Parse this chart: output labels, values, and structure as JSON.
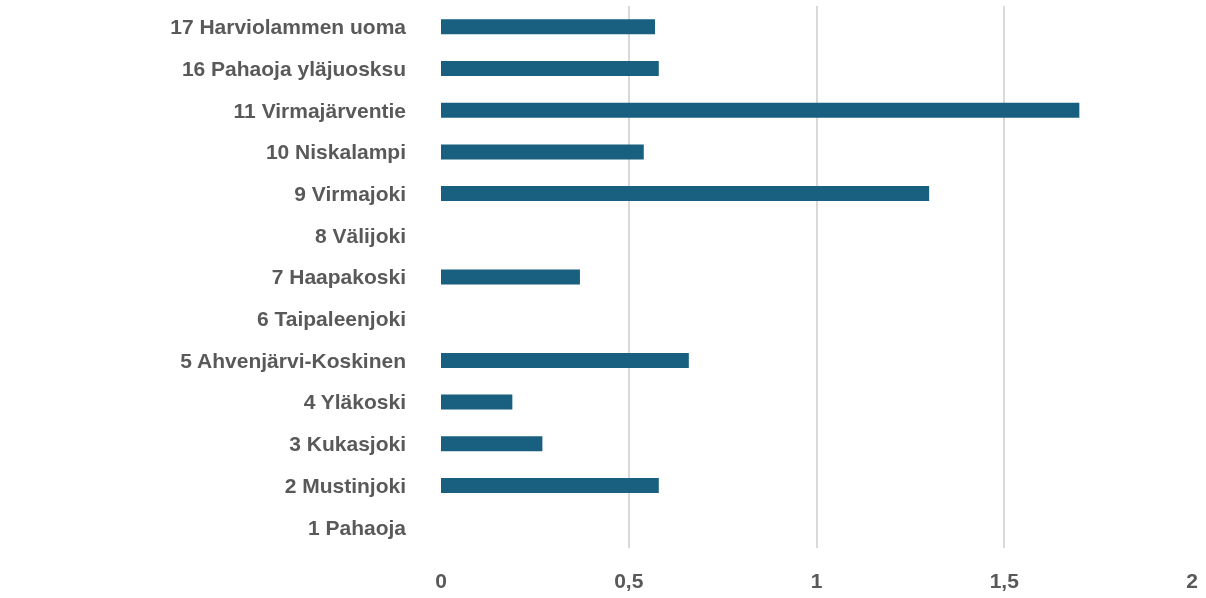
{
  "chart_data": {
    "type": "bar",
    "orientation": "horizontal",
    "categories": [
      "17 Harviolammen uoma",
      "16 Pahaoja yläjuosksu",
      "11 Virmajärventie",
      "10 Niskalampi",
      "9 Virmajoki",
      "8 Välijoki",
      "7 Haapakoski",
      "6 Taipaleenjoki",
      "5 Ahvenjärvi-Koskinen",
      "4 Yläkoski",
      "3 Kukasjoki",
      "2 Mustinjoki",
      "1 Pahaoja"
    ],
    "values": [
      0.57,
      0.58,
      1.7,
      0.54,
      1.3,
      null,
      0.37,
      null,
      0.66,
      0.19,
      0.27,
      0.58,
      null
    ],
    "color": "#185f80",
    "xlim": [
      0,
      2
    ],
    "xticks": [
      0,
      {
        "value": 0.5,
        "label": "0,5"
      },
      1,
      {
        "value": 1.5,
        "label": "1,5"
      },
      2
    ],
    "grid": "x"
  }
}
